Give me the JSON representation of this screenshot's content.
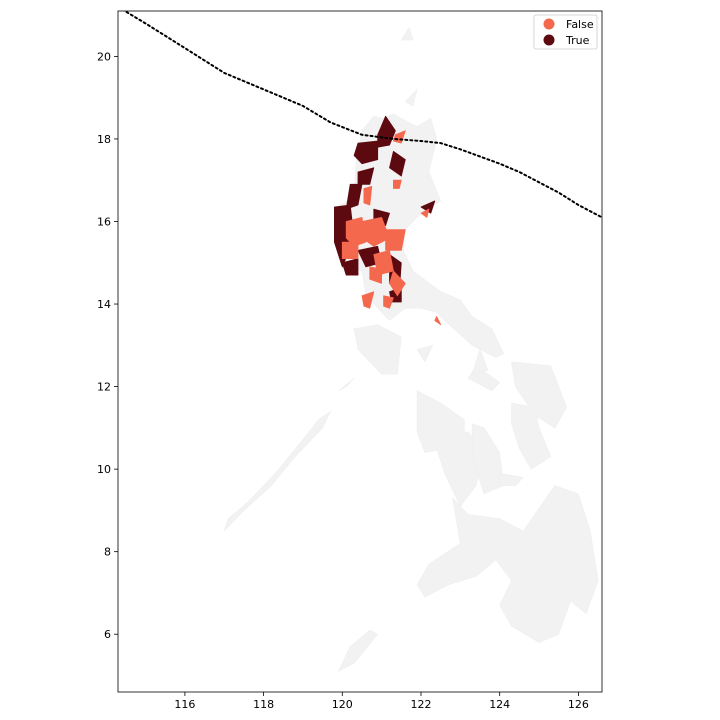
{
  "chart_data": {
    "type": "map",
    "xlim": [
      114.3,
      126.6
    ],
    "ylim": [
      4.6,
      21.1
    ],
    "x_ticks": [
      {
        "value": 116,
        "label": "116"
      },
      {
        "value": 118,
        "label": "118"
      },
      {
        "value": 120,
        "label": "120"
      },
      {
        "value": 122,
        "label": "122"
      },
      {
        "value": 124,
        "label": "124"
      },
      {
        "value": 126,
        "label": "126"
      }
    ],
    "y_ticks": [
      {
        "value": 6,
        "label": "6"
      },
      {
        "value": 8,
        "label": "8"
      },
      {
        "value": 10,
        "label": "10"
      },
      {
        "value": 12,
        "label": "12"
      },
      {
        "value": 14,
        "label": "14"
      },
      {
        "value": 16,
        "label": "16"
      },
      {
        "value": 18,
        "label": "18"
      },
      {
        "value": 20,
        "label": "20"
      }
    ],
    "legend": {
      "placement": "top-right",
      "entries": [
        {
          "label": "False",
          "color": "#f4694e"
        },
        {
          "label": "True",
          "color": "#5c0a10"
        }
      ]
    },
    "colors": {
      "land": "#f2f2f2",
      "false": "#f4694e",
      "true": "#5c0a10",
      "track": "#000000"
    },
    "track": [
      [
        114.3,
        21.2
      ],
      [
        115.0,
        20.8
      ],
      [
        116.0,
        20.2
      ],
      [
        117.0,
        19.6
      ],
      [
        118.0,
        19.2
      ],
      [
        119.0,
        18.8
      ],
      [
        119.7,
        18.4
      ],
      [
        120.5,
        18.1
      ],
      [
        121.3,
        18.0
      ],
      [
        122.0,
        17.95
      ],
      [
        122.5,
        17.9
      ],
      [
        123.0,
        17.75
      ],
      [
        124.0,
        17.4
      ],
      [
        124.5,
        17.2
      ],
      [
        125.0,
        16.95
      ],
      [
        125.5,
        16.7
      ],
      [
        126.0,
        16.4
      ],
      [
        126.6,
        16.1
      ]
    ],
    "land_polygons": [
      [
        [
          121.0,
          18.5
        ],
        [
          121.3,
          18.6
        ],
        [
          121.9,
          18.3
        ],
        [
          122.25,
          18.5
        ],
        [
          122.4,
          18.0
        ],
        [
          122.2,
          17.2
        ],
        [
          122.5,
          16.5
        ],
        [
          122.0,
          16.2
        ],
        [
          121.6,
          15.8
        ],
        [
          121.55,
          15.3
        ],
        [
          121.8,
          14.8
        ],
        [
          122.5,
          14.3
        ],
        [
          123.0,
          14.1
        ],
        [
          123.3,
          13.7
        ],
        [
          123.8,
          13.4
        ],
        [
          124.1,
          12.8
        ],
        [
          123.9,
          12.7
        ],
        [
          123.3,
          13.0
        ],
        [
          122.6,
          13.6
        ],
        [
          122.4,
          13.8
        ],
        [
          122.0,
          13.9
        ],
        [
          121.6,
          13.9
        ],
        [
          121.2,
          13.6
        ],
        [
          120.9,
          13.9
        ],
        [
          120.6,
          14.2
        ],
        [
          120.5,
          14.8
        ],
        [
          120.0,
          14.9
        ],
        [
          119.8,
          15.6
        ],
        [
          119.8,
          16.3
        ],
        [
          120.3,
          16.6
        ],
        [
          120.35,
          17.5
        ],
        [
          120.5,
          18.2
        ],
        [
          120.8,
          18.55
        ]
      ],
      [
        [
          120.3,
          13.4
        ],
        [
          120.9,
          13.5
        ],
        [
          121.5,
          13.2
        ],
        [
          121.4,
          12.3
        ],
        [
          121.0,
          12.3
        ],
        [
          120.4,
          12.9
        ]
      ],
      [
        [
          117.0,
          8.5
        ],
        [
          117.5,
          9.0
        ],
        [
          118.2,
          9.6
        ],
        [
          118.8,
          10.3
        ],
        [
          119.5,
          11.0
        ],
        [
          119.7,
          11.4
        ],
        [
          119.4,
          11.2
        ],
        [
          118.9,
          10.6
        ],
        [
          118.3,
          9.9
        ],
        [
          117.6,
          9.2
        ],
        [
          117.1,
          8.8
        ]
      ],
      [
        [
          119.9,
          11.9
        ],
        [
          120.3,
          12.2
        ],
        [
          120.1,
          12.0
        ]
      ],
      [
        [
          121.9,
          11.9
        ],
        [
          122.5,
          11.6
        ],
        [
          123.1,
          11.2
        ],
        [
          123.1,
          10.6
        ],
        [
          122.6,
          10.5
        ],
        [
          122.1,
          10.4
        ],
        [
          121.9,
          10.9
        ]
      ],
      [
        [
          122.5,
          10.9
        ],
        [
          123.2,
          10.9
        ],
        [
          123.6,
          10.4
        ],
        [
          123.4,
          9.6
        ],
        [
          123.0,
          9.1
        ],
        [
          122.6,
          9.9
        ],
        [
          122.4,
          10.5
        ]
      ],
      [
        [
          123.3,
          11.1
        ],
        [
          123.6,
          11.0
        ],
        [
          124.0,
          10.4
        ],
        [
          124.1,
          9.6
        ],
        [
          123.6,
          9.4
        ],
        [
          123.3,
          10.3
        ]
      ],
      [
        [
          124.0,
          9.9
        ],
        [
          124.6,
          9.8
        ],
        [
          124.4,
          9.6
        ],
        [
          124.0,
          9.6
        ]
      ],
      [
        [
          124.3,
          11.6
        ],
        [
          124.9,
          11.5
        ],
        [
          125.0,
          11.0
        ],
        [
          125.3,
          10.3
        ],
        [
          124.8,
          10.0
        ],
        [
          124.5,
          10.5
        ],
        [
          124.3,
          11.1
        ]
      ],
      [
        [
          124.3,
          12.6
        ],
        [
          125.3,
          12.5
        ],
        [
          125.7,
          11.5
        ],
        [
          125.4,
          11.0
        ],
        [
          124.9,
          11.3
        ],
        [
          124.4,
          12.0
        ]
      ],
      [
        [
          123.4,
          12.5
        ],
        [
          124.0,
          12.1
        ],
        [
          123.8,
          11.9
        ],
        [
          123.2,
          12.2
        ]
      ],
      [
        [
          122.8,
          9.3
        ],
        [
          123.2,
          8.9
        ],
        [
          124.0,
          8.8
        ],
        [
          124.6,
          8.5
        ],
        [
          125.4,
          9.6
        ],
        [
          126.0,
          9.4
        ],
        [
          126.3,
          8.5
        ],
        [
          126.5,
          7.3
        ],
        [
          126.2,
          6.5
        ],
        [
          125.8,
          6.8
        ],
        [
          125.5,
          6.0
        ],
        [
          125.0,
          5.8
        ],
        [
          124.3,
          6.2
        ],
        [
          124.0,
          6.7
        ],
        [
          124.3,
          7.3
        ],
        [
          123.9,
          7.8
        ],
        [
          123.4,
          7.4
        ],
        [
          122.7,
          7.2
        ],
        [
          122.1,
          6.9
        ],
        [
          121.9,
          7.2
        ],
        [
          122.2,
          7.7
        ],
        [
          123.0,
          8.2
        ]
      ],
      [
        [
          119.9,
          5.1
        ],
        [
          120.3,
          5.3
        ],
        [
          120.9,
          6.0
        ],
        [
          120.7,
          6.1
        ],
        [
          120.2,
          5.7
        ]
      ],
      [
        [
          121.6,
          18.9
        ],
        [
          121.9,
          19.2
        ],
        [
          121.8,
          18.8
        ]
      ],
      [
        [
          121.5,
          20.4
        ],
        [
          121.7,
          20.7
        ],
        [
          121.8,
          20.4
        ]
      ],
      [
        [
          121.9,
          12.9
        ],
        [
          122.3,
          13.0
        ],
        [
          122.1,
          12.6
        ]
      ],
      [
        [
          123.5,
          12.9
        ],
        [
          123.7,
          12.4
        ],
        [
          123.3,
          12.3
        ]
      ]
    ],
    "region_shapes": [
      {
        "category": "true",
        "points": [
          [
            120.9,
            18.1
          ],
          [
            121.1,
            18.55
          ],
          [
            121.35,
            18.2
          ],
          [
            121.2,
            17.85
          ],
          [
            120.9,
            17.8
          ]
        ]
      },
      {
        "category": "true",
        "points": [
          [
            120.4,
            17.9
          ],
          [
            120.9,
            17.95
          ],
          [
            120.9,
            17.5
          ],
          [
            120.5,
            17.4
          ],
          [
            120.3,
            17.6
          ]
        ]
      },
      {
        "category": "true",
        "points": [
          [
            121.3,
            17.7
          ],
          [
            121.6,
            17.5
          ],
          [
            121.5,
            17.1
          ],
          [
            121.2,
            17.3
          ]
        ]
      },
      {
        "category": "true",
        "points": [
          [
            120.4,
            17.2
          ],
          [
            120.8,
            17.3
          ],
          [
            120.7,
            16.9
          ],
          [
            120.4,
            16.9
          ]
        ]
      },
      {
        "category": "true",
        "points": [
          [
            120.2,
            16.9
          ],
          [
            120.5,
            16.9
          ],
          [
            120.4,
            16.4
          ],
          [
            120.1,
            16.3
          ]
        ]
      },
      {
        "category": "true",
        "points": [
          [
            119.8,
            16.35
          ],
          [
            120.2,
            16.4
          ],
          [
            120.3,
            15.6
          ],
          [
            120.0,
            14.9
          ],
          [
            119.8,
            15.5
          ]
        ]
      },
      {
        "category": "true",
        "points": [
          [
            120.4,
            15.3
          ],
          [
            120.9,
            15.4
          ],
          [
            121.0,
            15.0
          ],
          [
            120.6,
            14.9
          ]
        ]
      },
      {
        "category": "true",
        "points": [
          [
            121.2,
            15.2
          ],
          [
            121.5,
            15.0
          ],
          [
            121.45,
            14.3
          ],
          [
            121.2,
            14.5
          ]
        ]
      },
      {
        "category": "true",
        "points": [
          [
            120.0,
            15.0
          ],
          [
            120.4,
            15.1
          ],
          [
            120.4,
            14.7
          ],
          [
            120.1,
            14.7
          ]
        ]
      },
      {
        "category": "true",
        "points": [
          [
            121.2,
            14.3
          ],
          [
            121.5,
            14.4
          ],
          [
            121.5,
            14.05
          ],
          [
            121.25,
            14.05
          ]
        ]
      },
      {
        "category": "true",
        "points": [
          [
            122.0,
            16.35
          ],
          [
            122.35,
            16.5
          ],
          [
            122.25,
            16.2
          ]
        ]
      },
      {
        "category": "true",
        "points": [
          [
            120.8,
            16.3
          ],
          [
            121.2,
            16.2
          ],
          [
            121.1,
            15.9
          ],
          [
            120.8,
            15.9
          ]
        ]
      },
      {
        "category": "false",
        "points": [
          [
            121.35,
            18.1
          ],
          [
            121.6,
            18.2
          ],
          [
            121.5,
            17.9
          ],
          [
            121.3,
            17.95
          ]
        ]
      },
      {
        "category": "false",
        "points": [
          [
            120.1,
            16.0
          ],
          [
            120.5,
            16.1
          ],
          [
            120.6,
            15.5
          ],
          [
            120.3,
            15.4
          ],
          [
            120.1,
            15.6
          ]
        ]
      },
      {
        "category": "false",
        "points": [
          [
            120.5,
            16.0
          ],
          [
            121.0,
            16.1
          ],
          [
            121.2,
            15.6
          ],
          [
            120.8,
            15.4
          ],
          [
            120.5,
            15.6
          ]
        ]
      },
      {
        "category": "false",
        "points": [
          [
            121.1,
            15.8
          ],
          [
            121.6,
            15.8
          ],
          [
            121.5,
            15.3
          ],
          [
            121.1,
            15.3
          ]
        ]
      },
      {
        "category": "false",
        "points": [
          [
            120.0,
            15.5
          ],
          [
            120.4,
            15.5
          ],
          [
            120.4,
            15.1
          ],
          [
            120.0,
            15.1
          ]
        ]
      },
      {
        "category": "false",
        "points": [
          [
            120.8,
            15.2
          ],
          [
            121.2,
            15.3
          ],
          [
            121.3,
            14.8
          ],
          [
            120.9,
            14.7
          ]
        ]
      },
      {
        "category": "false",
        "points": [
          [
            120.7,
            14.9
          ],
          [
            121.0,
            14.85
          ],
          [
            121.0,
            14.5
          ],
          [
            120.7,
            14.6
          ]
        ]
      },
      {
        "category": "false",
        "points": [
          [
            121.3,
            14.8
          ],
          [
            121.6,
            14.5
          ],
          [
            121.4,
            14.2
          ],
          [
            121.2,
            14.5
          ]
        ]
      },
      {
        "category": "false",
        "points": [
          [
            120.5,
            14.2
          ],
          [
            120.8,
            14.3
          ],
          [
            120.7,
            13.9
          ],
          [
            120.55,
            13.95
          ]
        ]
      },
      {
        "category": "false",
        "points": [
          [
            121.05,
            14.2
          ],
          [
            121.3,
            14.15
          ],
          [
            121.2,
            13.9
          ],
          [
            121.05,
            13.95
          ]
        ]
      },
      {
        "category": "false",
        "points": [
          [
            120.55,
            16.8
          ],
          [
            120.75,
            16.85
          ],
          [
            120.7,
            16.4
          ],
          [
            120.55,
            16.45
          ]
        ]
      },
      {
        "category": "false",
        "points": [
          [
            121.3,
            17.0
          ],
          [
            121.5,
            17.0
          ],
          [
            121.45,
            16.8
          ],
          [
            121.3,
            16.8
          ]
        ]
      },
      {
        "category": "false",
        "points": [
          [
            122.0,
            16.2
          ],
          [
            122.2,
            16.3
          ],
          [
            122.15,
            16.1
          ]
        ]
      },
      {
        "category": "false",
        "points": [
          [
            122.35,
            13.6
          ],
          [
            122.5,
            13.5
          ],
          [
            122.4,
            13.7
          ]
        ]
      }
    ]
  }
}
